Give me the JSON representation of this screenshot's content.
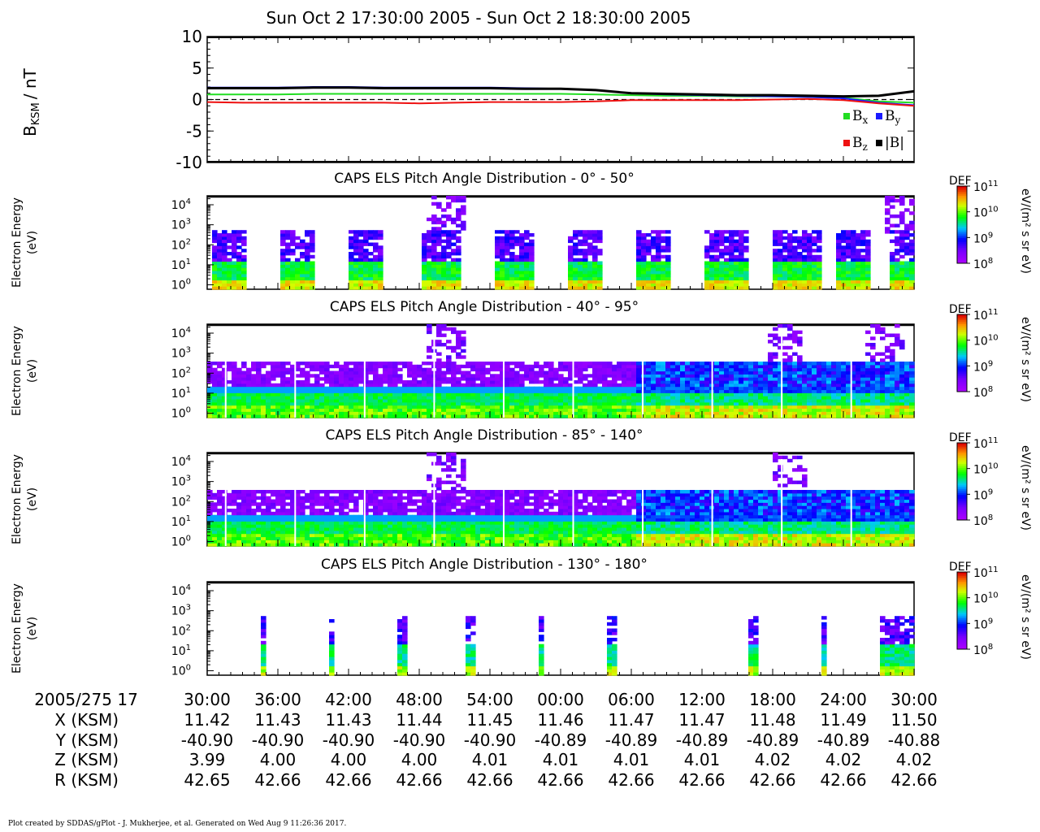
{
  "header": {
    "title": "Sun Oct 2 17:30:00 2005 - Sun Oct 2 18:30:00 2005"
  },
  "footer": {
    "credit": "Plot created by SDDAS/gPlot - J. Mukherjee, et al.  Generated on Wed Aug 9 11:26:36 2017."
  },
  "ephemeris": {
    "time_row_label": "2005/275 17",
    "rows": [
      {
        "label": "X (KSM)",
        "values": [
          "11.42",
          "11.43",
          "11.43",
          "11.44",
          "11.45",
          "11.46",
          "11.47",
          "11.47",
          "11.48",
          "11.49",
          "11.50"
        ]
      },
      {
        "label": "Y (KSM)",
        "values": [
          "-40.90",
          "-40.90",
          "-40.90",
          "-40.90",
          "-40.90",
          "-40.89",
          "-40.89",
          "-40.89",
          "-40.89",
          "-40.89",
          "-40.88"
        ]
      },
      {
        "label": "Z (KSM)",
        "values": [
          "3.99",
          "4.00",
          "4.00",
          "4.00",
          "4.01",
          "4.01",
          "4.01",
          "4.01",
          "4.02",
          "4.02",
          "4.02"
        ]
      },
      {
        "label": "R (KSM)",
        "values": [
          "42.65",
          "42.66",
          "42.66",
          "42.66",
          "42.66",
          "42.66",
          "42.66",
          "42.66",
          "42.66",
          "42.66",
          "42.66"
        ]
      }
    ]
  },
  "chart_data": [
    {
      "type": "line",
      "ylabel": "B",
      "ylabel_sub": "KSM",
      "ylabel_unit": "/ nT",
      "ylim": [
        -10,
        10
      ],
      "y_ticks": [
        10,
        5,
        0,
        -5,
        -10
      ],
      "x_tick_labels": [
        "30:00",
        "36:00",
        "42:00",
        "48:00",
        "54:00",
        "00:00",
        "06:00",
        "12:00",
        "18:00",
        "24:00",
        "30:00"
      ],
      "x": [
        0,
        3,
        6,
        9,
        12,
        15,
        18,
        21,
        24,
        27,
        30,
        33,
        36,
        39,
        42,
        45,
        48,
        51,
        54,
        57,
        60
      ],
      "zero_line": "dashed",
      "series": [
        {
          "name": "B",
          "sub": "x",
          "color": "#22dd22",
          "values": [
            0.8,
            0.8,
            0.8,
            0.9,
            0.9,
            0.9,
            0.9,
            0.9,
            0.9,
            0.9,
            0.9,
            0.8,
            0.7,
            0.6,
            0.6,
            0.5,
            0.5,
            0.4,
            0.3,
            -0.3,
            -0.5
          ]
        },
        {
          "name": "B",
          "sub": "y",
          "color": "#1a1aff",
          "values": [
            1.9,
            1.9,
            1.9,
            2.0,
            2.0,
            1.9,
            1.9,
            1.9,
            1.9,
            1.8,
            1.7,
            1.5,
            1.0,
            0.8,
            0.7,
            0.6,
            0.5,
            0.4,
            0.2,
            -0.5,
            -0.9
          ]
        },
        {
          "name": "B",
          "sub": "z",
          "color": "#ee1111",
          "values": [
            -0.4,
            -0.5,
            -0.5,
            -0.5,
            -0.5,
            -0.5,
            -0.6,
            -0.5,
            -0.4,
            -0.4,
            -0.4,
            -0.3,
            -0.1,
            -0.1,
            -0.1,
            -0.1,
            0.0,
            0.1,
            -0.1,
            -0.6,
            -1.0
          ]
        },
        {
          "name": "|B|",
          "sub": "",
          "color": "#000000",
          "values": [
            1.8,
            1.8,
            1.8,
            1.9,
            1.9,
            1.8,
            1.8,
            1.8,
            1.8,
            1.7,
            1.7,
            1.5,
            1.0,
            0.9,
            0.8,
            0.7,
            0.7,
            0.6,
            0.5,
            0.6,
            1.3
          ]
        }
      ],
      "legend": "bottom-right"
    },
    {
      "type": "heatmap",
      "title": "CAPS ELS Pitch Angle Distribution - 0° - 50°",
      "ylabel": "Electron Energy",
      "ylabel_unit": "(eV)",
      "y_scale": "log",
      "y_range_eV": [
        0.6,
        28000
      ],
      "colorbar": {
        "label": "DEF",
        "unit": "eV/(m² s sr eV)",
        "range": [
          100000000.0,
          100000000000.0
        ]
      },
      "pattern": "bursts",
      "bursts_min": [
        [
          0.6,
          3.2
        ],
        [
          6.4,
          9.1
        ],
        [
          12.2,
          15.1
        ],
        [
          18.3,
          21.5
        ],
        [
          24.6,
          27.6
        ],
        [
          30.5,
          33.5
        ],
        [
          36.3,
          39.4
        ],
        [
          42.3,
          46.1
        ],
        [
          47.9,
          52.0
        ],
        [
          53.5,
          56.2
        ],
        [
          57.8,
          60.0
        ]
      ],
      "sparse_high_counts_min": [
        20.3,
        59.0
      ]
    },
    {
      "type": "heatmap",
      "title": "CAPS ELS Pitch Angle Distribution - 40° - 95°",
      "ylabel": "Electron Energy",
      "ylabel_unit": "(eV)",
      "y_scale": "log",
      "y_range_eV": [
        0.6,
        28000
      ],
      "colorbar": {
        "label": "DEF",
        "unit": "eV/(m² s sr eV)",
        "range": [
          100000000.0,
          100000000000.0
        ]
      },
      "pattern": "continuous",
      "transition_min": 36.5,
      "sparse_high_counts_min": [
        20.3,
        49.0,
        57.5
      ]
    },
    {
      "type": "heatmap",
      "title": "CAPS ELS Pitch Angle Distribution - 85° - 140°",
      "ylabel": "Electron Energy",
      "ylabel_unit": "(eV)",
      "y_scale": "log",
      "y_range_eV": [
        0.6,
        28000
      ],
      "colorbar": {
        "label": "DEF",
        "unit": "eV/(m² s sr eV)",
        "range": [
          100000000.0,
          100000000000.0
        ]
      },
      "pattern": "continuous",
      "transition_min": 36.5,
      "sparse_high_counts_min": [
        20.3,
        49.5
      ]
    },
    {
      "type": "heatmap",
      "title": "CAPS ELS Pitch Angle Distribution - 130° - 180°",
      "ylabel": "Electron Energy",
      "ylabel_unit": "(eV)",
      "y_scale": "log",
      "y_range_eV": [
        0.6,
        28000
      ],
      "colorbar": {
        "label": "DEF",
        "unit": "eV/(m² s sr eV)",
        "range": [
          100000000.0,
          100000000000.0
        ]
      },
      "pattern": "sparse",
      "bursts_min": [
        [
          4.5,
          5.0
        ],
        [
          10.3,
          10.8
        ],
        [
          16.3,
          16.8
        ],
        [
          22.0,
          22.8
        ],
        [
          28.1,
          28.6
        ],
        [
          34.0,
          34.6
        ],
        [
          46.0,
          46.6
        ],
        [
          52.2,
          52.7
        ],
        [
          57.1,
          60.0
        ]
      ]
    }
  ]
}
